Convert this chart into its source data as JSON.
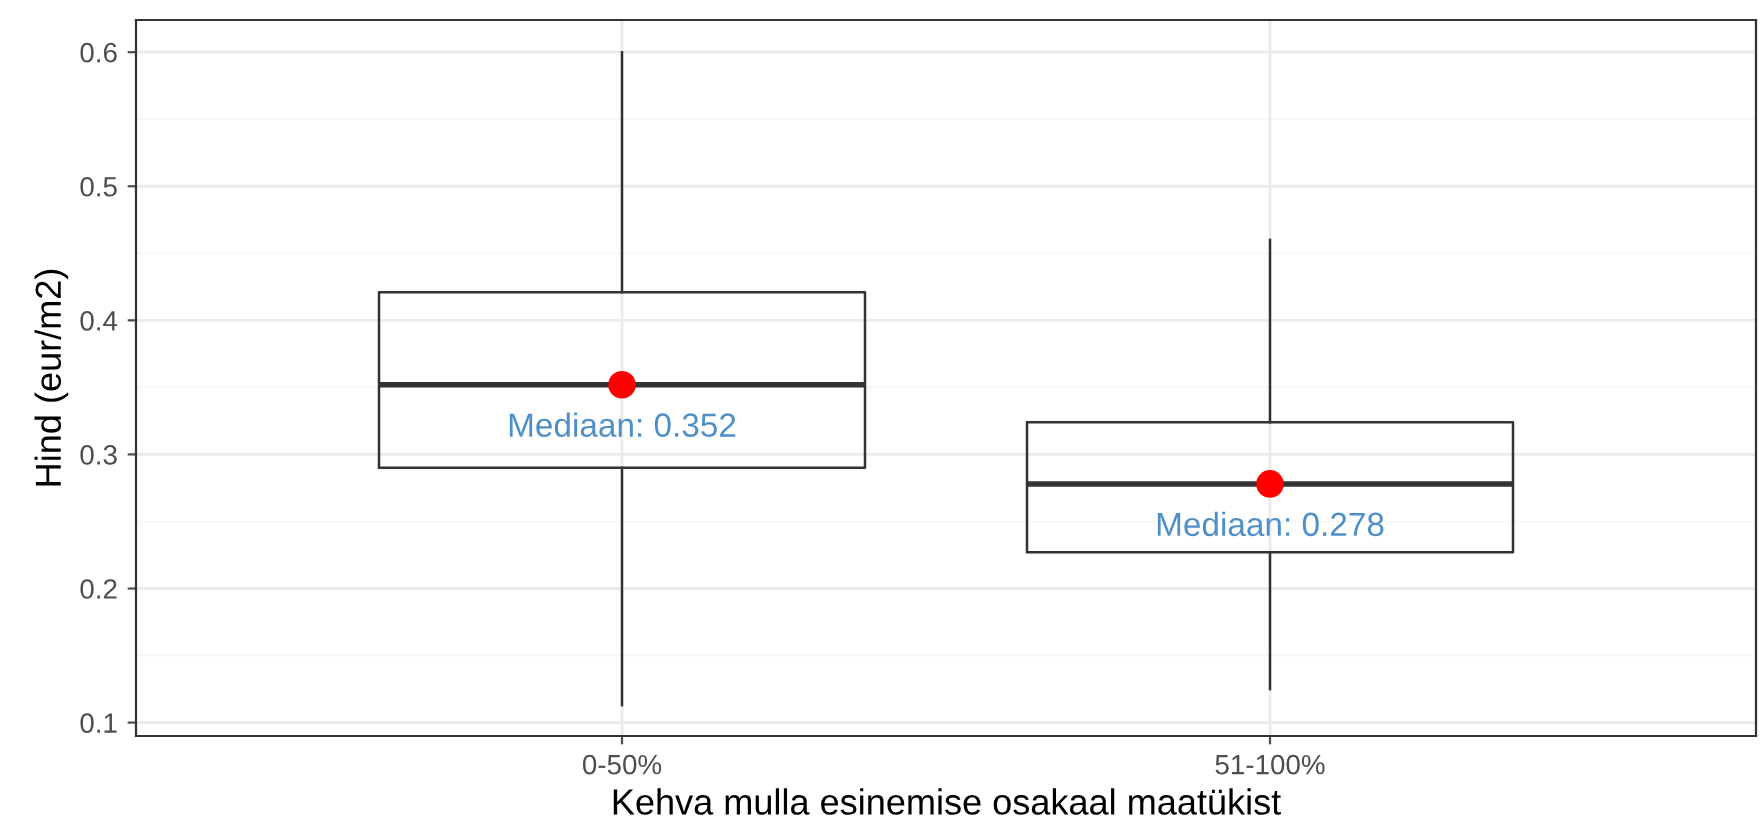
{
  "chart_data": {
    "type": "box",
    "xlabel": "Kehva mulla esinemise osakaal maatükist",
    "ylabel": "Hind (eur/m2)",
    "categories": [
      "0-50%",
      "51-100%"
    ],
    "boxes": [
      {
        "low": 0.113,
        "q1": 0.29,
        "median": 0.352,
        "q3": 0.421,
        "high": 0.6
      },
      {
        "low": 0.125,
        "q1": 0.227,
        "median": 0.278,
        "q3": 0.324,
        "high": 0.46
      }
    ],
    "series": [
      {
        "type": "scatter",
        "color": "#ff0000",
        "x": [
          "0-50%",
          "51-100%"
        ],
        "values": [
          0.352,
          0.278
        ]
      }
    ],
    "annotations": [
      {
        "text": "Mediaan: 0.352",
        "x": "0-50%",
        "y": 0.352
      },
      {
        "text": "Mediaan: 0.278",
        "x": "51-100%",
        "y": 0.278
      }
    ],
    "ylim": [
      0.09,
      0.624
    ],
    "yticks": [
      0.1,
      0.2,
      0.3,
      0.4,
      0.5,
      0.6
    ],
    "grid": true
  }
}
